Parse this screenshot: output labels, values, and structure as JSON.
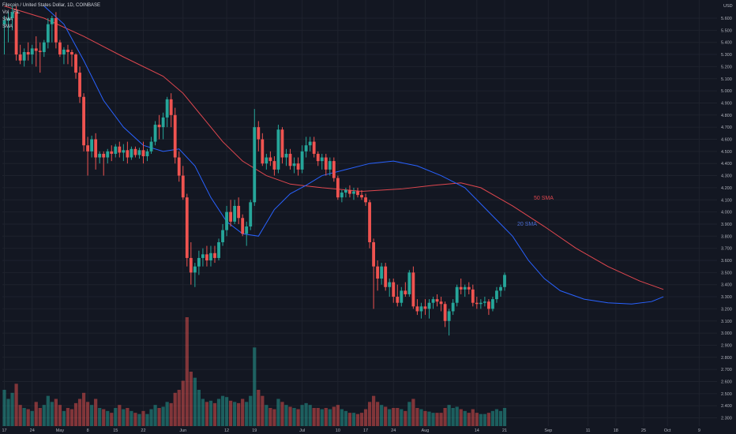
{
  "legend": {
    "title": "Filecoin / United States Dollar, 1D, COINBASE",
    "vol": "Vol · FIL",
    "sma1": "SMA",
    "sma2": "SMA"
  },
  "annotations": {
    "sma50": "50 SMA",
    "sma20": "20 SMA"
  },
  "colors": {
    "background": "#131722",
    "up": "#26a69a",
    "down": "#ef5350",
    "sma50": "#e0474f",
    "sma20": "#2962ff",
    "grid": "#1e222d"
  },
  "chart_data": {
    "type": "candlestick",
    "title": "Filecoin / United States Dollar, 1D, COINBASE",
    "y_axis_unit": "USD",
    "y_ticks": [
      5.6,
      5.5,
      5.4,
      5.3,
      5.2,
      5.1,
      5.0,
      4.9,
      4.8,
      4.7,
      4.6,
      4.5,
      4.4,
      4.3,
      4.2,
      4.1,
      4.0,
      3.9,
      3.8,
      3.7,
      3.6,
      3.5,
      3.4,
      3.3,
      3.2,
      3.1,
      3.0,
      2.9,
      2.8,
      2.7,
      2.6,
      2.5,
      2.4,
      2.3
    ],
    "x_ticks": [
      {
        "label": "17",
        "index": 0
      },
      {
        "label": "24",
        "index": 7
      },
      {
        "label": "May",
        "index": 14
      },
      {
        "label": "8",
        "index": 21
      },
      {
        "label": "15",
        "index": 28
      },
      {
        "label": "22",
        "index": 35
      },
      {
        "label": "Jun",
        "index": 45
      },
      {
        "label": "12",
        "index": 56
      },
      {
        "label": "19",
        "index": 63
      },
      {
        "label": "Jul",
        "index": 75
      },
      {
        "label": "10",
        "index": 84
      },
      {
        "label": "17",
        "index": 91
      },
      {
        "label": "24",
        "index": 98
      },
      {
        "label": "Aug",
        "index": 106
      },
      {
        "label": "14",
        "index": 119
      },
      {
        "label": "21",
        "index": 126
      },
      {
        "label": "Sep",
        "index": 137
      },
      {
        "label": "11",
        "index": 147
      },
      {
        "label": "18",
        "index": 154
      },
      {
        "label": "25",
        "index": 161
      },
      {
        "label": "Oct",
        "index": 167
      },
      {
        "label": "9",
        "index": 175
      }
    ],
    "ohlcv": [
      [
        5.55,
        5.62,
        5.3,
        5.58,
        60
      ],
      [
        5.58,
        5.65,
        5.4,
        5.6,
        45
      ],
      [
        5.6,
        5.7,
        5.5,
        5.65,
        55
      ],
      [
        5.65,
        5.7,
        5.25,
        5.3,
        70
      ],
      [
        5.3,
        5.38,
        5.22,
        5.25,
        35
      ],
      [
        5.25,
        5.35,
        5.2,
        5.32,
        30
      ],
      [
        5.32,
        5.4,
        5.25,
        5.3,
        28
      ],
      [
        5.3,
        5.38,
        5.22,
        5.35,
        25
      ],
      [
        5.35,
        5.45,
        5.2,
        5.33,
        40
      ],
      [
        5.33,
        5.4,
        5.15,
        5.32,
        30
      ],
      [
        5.32,
        5.42,
        5.28,
        5.4,
        35
      ],
      [
        5.4,
        5.6,
        5.35,
        5.55,
        50
      ],
      [
        5.55,
        5.62,
        5.4,
        5.6,
        40
      ],
      [
        5.6,
        5.65,
        5.35,
        5.4,
        45
      ],
      [
        5.4,
        5.42,
        5.28,
        5.3,
        35
      ],
      [
        5.3,
        5.36,
        5.22,
        5.34,
        25
      ],
      [
        5.34,
        5.38,
        5.22,
        5.32,
        30
      ],
      [
        5.32,
        5.34,
        5.2,
        5.3,
        28
      ],
      [
        5.3,
        5.31,
        5.1,
        5.15,
        38
      ],
      [
        5.15,
        5.2,
        4.9,
        4.95,
        45
      ],
      [
        4.95,
        4.98,
        4.5,
        4.55,
        55
      ],
      [
        4.55,
        4.62,
        4.3,
        4.5,
        40
      ],
      [
        4.5,
        4.63,
        4.45,
        4.6,
        35
      ],
      [
        4.6,
        4.65,
        4.35,
        4.45,
        45
      ],
      [
        4.45,
        4.5,
        4.4,
        4.48,
        30
      ],
      [
        4.48,
        4.5,
        4.3,
        4.45,
        28
      ],
      [
        4.45,
        4.52,
        4.4,
        4.5,
        25
      ],
      [
        4.5,
        4.55,
        4.42,
        4.48,
        22
      ],
      [
        4.48,
        4.56,
        4.45,
        4.54,
        30
      ],
      [
        4.54,
        4.58,
        4.45,
        4.49,
        35
      ],
      [
        4.49,
        4.56,
        4.42,
        4.51,
        28
      ],
      [
        4.51,
        4.58,
        4.4,
        4.45,
        30
      ],
      [
        4.45,
        4.54,
        4.43,
        4.52,
        25
      ],
      [
        4.52,
        4.54,
        4.45,
        4.47,
        22
      ],
      [
        4.47,
        4.53,
        4.44,
        4.51,
        20
      ],
      [
        4.51,
        4.58,
        4.4,
        4.46,
        25
      ],
      [
        4.46,
        4.52,
        4.42,
        4.5,
        20
      ],
      [
        4.5,
        4.62,
        4.48,
        4.58,
        28
      ],
      [
        4.58,
        4.75,
        4.55,
        4.72,
        35
      ],
      [
        4.72,
        4.8,
        4.6,
        4.7,
        30
      ],
      [
        4.7,
        4.82,
        4.6,
        4.78,
        32
      ],
      [
        4.78,
        4.95,
        4.7,
        4.93,
        40
      ],
      [
        4.93,
        4.98,
        4.7,
        4.8,
        38
      ],
      [
        4.8,
        4.86,
        4.4,
        4.45,
        55
      ],
      [
        4.45,
        4.5,
        4.25,
        4.3,
        60
      ],
      [
        4.3,
        4.38,
        4.1,
        4.12,
        75
      ],
      [
        4.12,
        4.15,
        3.55,
        3.62,
        180
      ],
      [
        3.62,
        3.75,
        3.4,
        3.5,
        90
      ],
      [
        3.5,
        3.58,
        3.38,
        3.55,
        80
      ],
      [
        3.55,
        3.68,
        3.48,
        3.62,
        60
      ],
      [
        3.62,
        3.7,
        3.55,
        3.65,
        45
      ],
      [
        3.65,
        3.72,
        3.55,
        3.6,
        40
      ],
      [
        3.6,
        3.72,
        3.55,
        3.66,
        42
      ],
      [
        3.66,
        3.72,
        3.58,
        3.62,
        38
      ],
      [
        3.62,
        3.78,
        3.6,
        3.75,
        45
      ],
      [
        3.75,
        3.9,
        3.72,
        3.85,
        50
      ],
      [
        3.85,
        4.05,
        3.8,
        4.0,
        48
      ],
      [
        4.0,
        4.1,
        3.88,
        3.92,
        42
      ],
      [
        3.92,
        4.1,
        3.9,
        4.05,
        40
      ],
      [
        4.05,
        4.12,
        3.9,
        3.95,
        38
      ],
      [
        3.95,
        3.98,
        3.8,
        3.82,
        45
      ],
      [
        3.82,
        3.92,
        3.72,
        3.88,
        40
      ],
      [
        3.88,
        4.1,
        3.85,
        4.08,
        50
      ],
      [
        4.08,
        4.85,
        4.05,
        4.7,
        130
      ],
      [
        4.7,
        4.75,
        4.5,
        4.6,
        60
      ],
      [
        4.6,
        4.65,
        4.38,
        4.4,
        50
      ],
      [
        4.4,
        4.48,
        4.35,
        4.45,
        35
      ],
      [
        4.45,
        4.5,
        4.38,
        4.42,
        30
      ],
      [
        4.42,
        4.46,
        4.3,
        4.35,
        28
      ],
      [
        4.35,
        4.72,
        4.32,
        4.68,
        45
      ],
      [
        4.68,
        4.7,
        4.4,
        4.45,
        40
      ],
      [
        4.45,
        4.52,
        4.38,
        4.48,
        35
      ],
      [
        4.48,
        4.52,
        4.35,
        4.38,
        32
      ],
      [
        4.38,
        4.45,
        4.32,
        4.4,
        30
      ],
      [
        4.4,
        4.45,
        4.3,
        4.35,
        28
      ],
      [
        4.35,
        4.55,
        4.32,
        4.5,
        35
      ],
      [
        4.5,
        4.62,
        4.45,
        4.55,
        38
      ],
      [
        4.55,
        4.62,
        4.5,
        4.58,
        35
      ],
      [
        4.58,
        4.62,
        4.45,
        4.48,
        30
      ],
      [
        4.48,
        4.5,
        4.38,
        4.42,
        30
      ],
      [
        4.42,
        4.48,
        4.35,
        4.45,
        28
      ],
      [
        4.45,
        4.48,
        4.3,
        4.35,
        30
      ],
      [
        4.35,
        4.45,
        4.3,
        4.42,
        28
      ],
      [
        4.42,
        4.45,
        4.25,
        4.28,
        32
      ],
      [
        4.28,
        4.3,
        4.1,
        4.12,
        35
      ],
      [
        4.12,
        4.18,
        4.08,
        4.16,
        28
      ],
      [
        4.16,
        4.2,
        4.12,
        4.18,
        25
      ],
      [
        4.18,
        4.22,
        4.12,
        4.15,
        22
      ],
      [
        4.15,
        4.2,
        4.1,
        4.17,
        22
      ],
      [
        4.17,
        4.2,
        4.12,
        4.14,
        20
      ],
      [
        4.14,
        4.18,
        4.1,
        4.12,
        22
      ],
      [
        4.12,
        4.15,
        4.05,
        4.08,
        28
      ],
      [
        4.08,
        4.1,
        3.7,
        3.75,
        40
      ],
      [
        3.75,
        3.78,
        3.2,
        3.55,
        50
      ],
      [
        3.55,
        3.6,
        3.35,
        3.45,
        40
      ],
      [
        3.45,
        3.58,
        3.4,
        3.55,
        35
      ],
      [
        3.55,
        3.58,
        3.35,
        3.38,
        32
      ],
      [
        3.38,
        3.45,
        3.3,
        3.42,
        28
      ],
      [
        3.42,
        3.45,
        3.25,
        3.3,
        30
      ],
      [
        3.3,
        3.4,
        3.22,
        3.25,
        30
      ],
      [
        3.25,
        3.38,
        3.22,
        3.35,
        28
      ],
      [
        3.35,
        3.42,
        3.3,
        3.32,
        25
      ],
      [
        3.32,
        3.52,
        3.3,
        3.5,
        40
      ],
      [
        3.5,
        3.55,
        3.2,
        3.22,
        45
      ],
      [
        3.22,
        3.28,
        3.15,
        3.18,
        30
      ],
      [
        3.18,
        3.25,
        3.12,
        3.22,
        28
      ],
      [
        3.22,
        3.28,
        3.15,
        3.2,
        25
      ],
      [
        3.2,
        3.28,
        3.12,
        3.25,
        24
      ],
      [
        3.25,
        3.3,
        3.2,
        3.28,
        22
      ],
      [
        3.28,
        3.32,
        3.22,
        3.26,
        22
      ],
      [
        3.26,
        3.3,
        3.18,
        3.24,
        22
      ],
      [
        3.24,
        3.26,
        3.05,
        3.1,
        30
      ],
      [
        3.1,
        3.2,
        2.98,
        3.18,
        35
      ],
      [
        3.18,
        3.28,
        3.15,
        3.25,
        30
      ],
      [
        3.25,
        3.4,
        3.22,
        3.38,
        32
      ],
      [
        3.38,
        3.45,
        3.32,
        3.36,
        28
      ],
      [
        3.36,
        3.4,
        3.3,
        3.38,
        25
      ],
      [
        3.38,
        3.42,
        3.32,
        3.36,
        22
      ],
      [
        3.36,
        3.4,
        3.22,
        3.25,
        28
      ],
      [
        3.25,
        3.3,
        3.2,
        3.24,
        22
      ],
      [
        3.24,
        3.28,
        3.2,
        3.25,
        20
      ],
      [
        3.25,
        3.3,
        3.22,
        3.26,
        20
      ],
      [
        3.26,
        3.28,
        3.15,
        3.2,
        22
      ],
      [
        3.2,
        3.3,
        3.18,
        3.28,
        25
      ],
      [
        3.28,
        3.38,
        3.25,
        3.35,
        28
      ],
      [
        3.35,
        3.4,
        3.3,
        3.38,
        25
      ],
      [
        3.38,
        3.5,
        3.35,
        3.48,
        30
      ]
    ],
    "sma50": [
      [
        0,
        5.7
      ],
      [
        10,
        5.6
      ],
      [
        20,
        5.45
      ],
      [
        30,
        5.28
      ],
      [
        40,
        5.12
      ],
      [
        45,
        4.98
      ],
      [
        50,
        4.78
      ],
      [
        55,
        4.58
      ],
      [
        60,
        4.42
      ],
      [
        66,
        4.3
      ],
      [
        72,
        4.23
      ],
      [
        80,
        4.2
      ],
      [
        90,
        4.17
      ],
      [
        100,
        4.19
      ],
      [
        108,
        4.22
      ],
      [
        115,
        4.24
      ],
      [
        120,
        4.2
      ],
      [
        128,
        4.05
      ],
      [
        136,
        3.88
      ],
      [
        144,
        3.7
      ],
      [
        152,
        3.55
      ],
      [
        160,
        3.43
      ],
      [
        166,
        3.36
      ]
    ],
    "sma20": [
      [
        10,
        5.7
      ],
      [
        15,
        5.55
      ],
      [
        20,
        5.25
      ],
      [
        25,
        4.92
      ],
      [
        30,
        4.7
      ],
      [
        35,
        4.55
      ],
      [
        40,
        4.5
      ],
      [
        44,
        4.52
      ],
      [
        48,
        4.38
      ],
      [
        52,
        4.12
      ],
      [
        56,
        3.92
      ],
      [
        60,
        3.82
      ],
      [
        64,
        3.8
      ],
      [
        68,
        4.02
      ],
      [
        72,
        4.15
      ],
      [
        76,
        4.22
      ],
      [
        80,
        4.3
      ],
      [
        86,
        4.35
      ],
      [
        92,
        4.4
      ],
      [
        98,
        4.42
      ],
      [
        104,
        4.38
      ],
      [
        110,
        4.3
      ],
      [
        116,
        4.2
      ],
      [
        122,
        4.0
      ],
      [
        128,
        3.8
      ],
      [
        132,
        3.6
      ],
      [
        136,
        3.45
      ],
      [
        140,
        3.35
      ],
      [
        146,
        3.28
      ],
      [
        152,
        3.25
      ],
      [
        158,
        3.24
      ],
      [
        163,
        3.26
      ],
      [
        166,
        3.3
      ]
    ]
  }
}
